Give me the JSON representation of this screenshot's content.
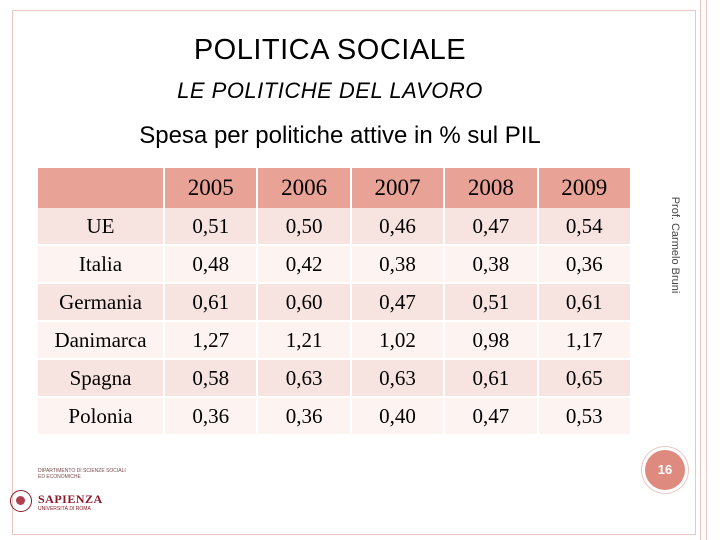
{
  "slide": {
    "title": "POLITICA SOCIALE",
    "subtitle_italic_letter": "L",
    "subtitle_rest": "E POLITICHE DEL LAVORO",
    "caption": "Spesa per politiche attive in % sul PIL",
    "author": "Prof. Carmelo Bruni",
    "page_number": "16"
  },
  "table": {
    "headers": [
      "",
      "2005",
      "2006",
      "2007",
      "2008",
      "2009"
    ],
    "rows": [
      {
        "country": "UE",
        "values": [
          "0,51",
          "0,50",
          "0,46",
          "0,47",
          "0,54"
        ]
      },
      {
        "country": "Italia",
        "values": [
          "0,48",
          "0,42",
          "0,38",
          "0,38",
          "0,36"
        ]
      },
      {
        "country": "Germania",
        "values": [
          "0,61",
          "0,60",
          "0,47",
          "0,51",
          "0,61"
        ]
      },
      {
        "country": "Danimarca",
        "values": [
          "1,27",
          "1,21",
          "1,02",
          "0,98",
          "1,17"
        ]
      },
      {
        "country": "Spagna",
        "values": [
          "0,58",
          "0,63",
          "0,63",
          "0,61",
          "0,65"
        ]
      },
      {
        "country": "Polonia",
        "values": [
          "0,36",
          "0,36",
          "0,40",
          "0,47",
          "0,53"
        ]
      }
    ]
  },
  "logo": {
    "department": "DIPARTIMENTO DI SCIENZE SOCIALI ED ECONOMICHE",
    "university": "SAPIENZA",
    "university_sub": "UNIVERSITÀ DI ROMA"
  },
  "colors": {
    "header_bg": "#e8a296",
    "row_odd": "#f7e3df",
    "row_even": "#fdf3f1",
    "accent": "#de8a7f"
  }
}
